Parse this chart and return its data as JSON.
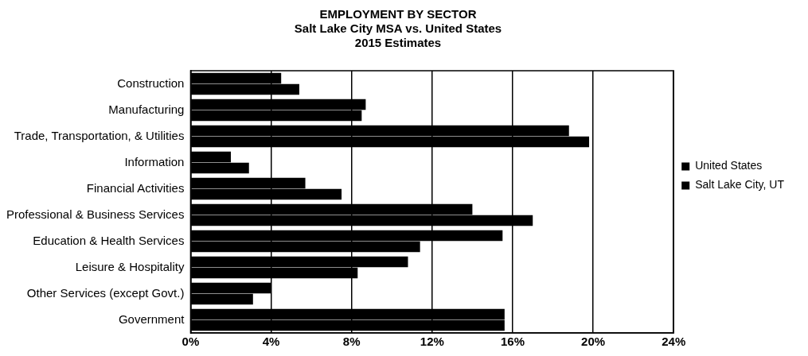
{
  "chart_data": {
    "type": "bar",
    "orientation": "horizontal",
    "title": "EMPLOYMENT BY SECTOR",
    "subtitle": "Salt Lake City MSA vs. United States\n2015 Estimates",
    "categories": [
      "Construction",
      "Manufacturing",
      "Trade, Transportation, & Utilities",
      "Information",
      "Financial Activities",
      "Professional & Business Services",
      "Education & Health Services",
      "Leisure & Hospitality",
      "Other Services (except Govt.)",
      "Government"
    ],
    "series": [
      {
        "name": "United States",
        "color": "#000000",
        "values": [
          4.5,
          8.7,
          18.8,
          2.0,
          5.7,
          14.0,
          15.5,
          10.8,
          4.0,
          15.6
        ]
      },
      {
        "name": "Salt Lake City, UT",
        "color": "#000000",
        "values": [
          5.4,
          8.5,
          19.8,
          2.9,
          7.5,
          17.0,
          11.4,
          8.3,
          3.1,
          15.6
        ]
      }
    ],
    "xlim": [
      0,
      24
    ],
    "xticks": [
      {
        "value": 0,
        "label": "0%"
      },
      {
        "value": 4,
        "label": "4%"
      },
      {
        "value": 8,
        "label": "8%"
      },
      {
        "value": 12,
        "label": "12%"
      },
      {
        "value": 16,
        "label": "16%"
      },
      {
        "value": 20,
        "label": "20%"
      },
      {
        "value": 24,
        "label": "24%"
      }
    ],
    "grid": "x",
    "legend": "right"
  }
}
